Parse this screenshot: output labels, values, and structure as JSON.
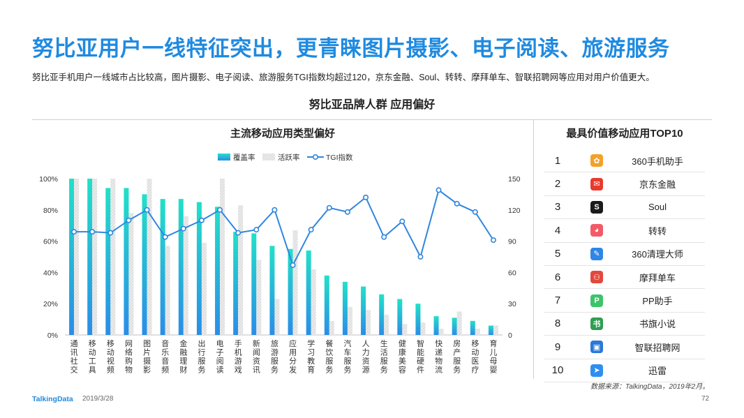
{
  "header": {
    "title": "努比亚用户一线特征突出，更青睐图片摄影、电子阅读、旅游服务",
    "subtitle": "努比亚手机用户一线城市占比较高，图片摄影、电子阅读、旅游服务TGI指数均超过120，京东金融、Soul、转转、摩拜单车、智联招聘网等应用对用户价值更大。",
    "section_title": "努比亚品牌人群  应用偏好"
  },
  "chart_data": {
    "type": "bar",
    "title": "主流移动应用类型偏好",
    "categories": [
      "通讯社交",
      "移动工具",
      "移动视频",
      "网络购物",
      "图片摄影",
      "音乐音频",
      "金融理财",
      "出行服务",
      "电子阅读",
      "手机游戏",
      "新闻资讯",
      "旅游服务",
      "应用分发",
      "学习教育",
      "餐饮服务",
      "汽车服务",
      "人力资源",
      "生活服务",
      "健康美容",
      "智能硬件",
      "快递物流",
      "房产服务",
      "移动医疗",
      "育儿母婴"
    ],
    "series": [
      {
        "name": "覆盖率",
        "axis": "left",
        "values": [
          100,
          100,
          94,
          94,
          90,
          87,
          87,
          85,
          82,
          66,
          65,
          57,
          55,
          54,
          38,
          34,
          31,
          26,
          23,
          20,
          12,
          11,
          9,
          6
        ]
      },
      {
        "name": "活跃率",
        "axis": "left",
        "values": [
          100,
          100,
          100,
          78,
          100,
          57,
          76,
          59,
          100,
          83,
          48,
          23,
          67,
          42,
          9,
          18,
          16,
          13,
          7,
          8,
          4,
          15,
          4,
          6
        ]
      },
      {
        "name": "TGI指数",
        "axis": "right",
        "values": [
          99,
          99,
          98,
          110,
          120,
          94,
          102,
          110,
          120,
          98,
          101,
          120,
          67,
          101,
          122,
          118,
          132,
          94,
          109,
          75,
          139,
          126,
          118,
          91
        ]
      }
    ],
    "ylim_left": [
      0,
      100
    ],
    "ylim_right": [
      0,
      150
    ],
    "yticks_left": [
      "0%",
      "20%",
      "40%",
      "60%",
      "80%",
      "100%"
    ],
    "yticks_right": [
      "0",
      "30",
      "60",
      "90",
      "120",
      "150"
    ],
    "legend_position": "top-center",
    "colors": {
      "coverage_top": "#22e0c8",
      "coverage_bottom": "#2a8de8",
      "active": "#d8d8d8",
      "tgi": "#2f86e0"
    }
  },
  "top10": {
    "title": "最具价值移动应用TOP10",
    "items": [
      {
        "rank": "1",
        "name": "360手机助手",
        "icon": "360-assistant-icon",
        "color": "#f2a22a",
        "glyph": "✿"
      },
      {
        "rank": "2",
        "name": "京东金融",
        "icon": "jd-finance-icon",
        "color": "#e93a2e",
        "glyph": "✉"
      },
      {
        "rank": "3",
        "name": "Soul",
        "icon": "soul-icon",
        "color": "#1b1b1b",
        "glyph": "S"
      },
      {
        "rank": "4",
        "name": "转转",
        "icon": "zhuanzhuan-icon",
        "color": "#f25a67",
        "glyph": "◕"
      },
      {
        "rank": "5",
        "name": "360清理大师",
        "icon": "360-cleaner-icon",
        "color": "#2e86e6",
        "glyph": "✎"
      },
      {
        "rank": "6",
        "name": "摩拜单车",
        "icon": "mobike-icon",
        "color": "#e2483d",
        "glyph": "⚇"
      },
      {
        "rank": "7",
        "name": "PP助手",
        "icon": "pp-assistant-icon",
        "color": "#3cc46a",
        "glyph": "P"
      },
      {
        "rank": "8",
        "name": "书旗小说",
        "icon": "shuqi-icon",
        "color": "#2e9e52",
        "glyph": "书"
      },
      {
        "rank": "9",
        "name": "智联招聘网",
        "icon": "zhaopin-icon",
        "color": "#2a78d8",
        "glyph": "▣"
      },
      {
        "rank": "10",
        "name": "迅雷",
        "icon": "xunlei-icon",
        "color": "#2d8ff0",
        "glyph": "➤"
      }
    ]
  },
  "footer": {
    "source": "数据来源：TalkingData，2019年2月。",
    "brand": "TalkingData",
    "date": "2019/3/28",
    "page": "72"
  }
}
